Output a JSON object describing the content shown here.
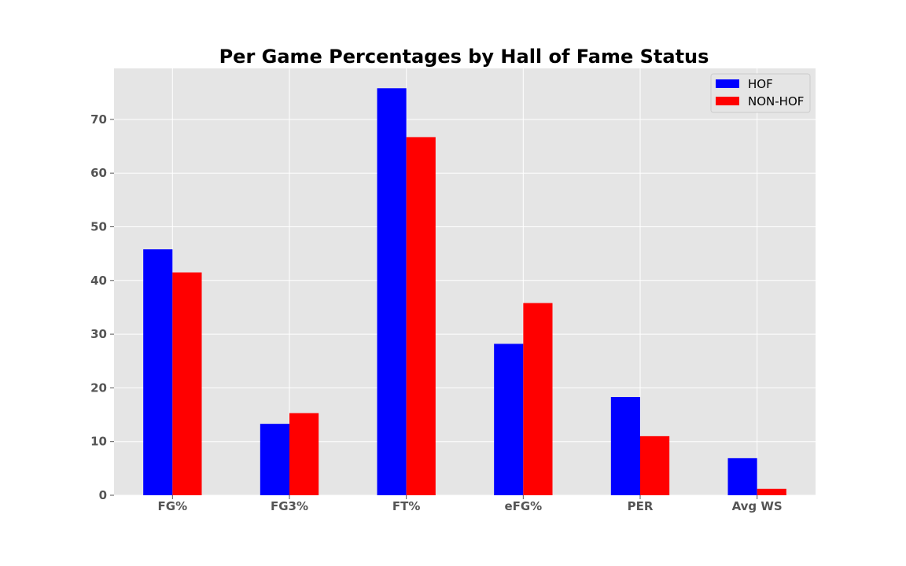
{
  "colors": {
    "plot_background": "#e5e5e5",
    "grid": "#ffffff",
    "hof": "#0000ff",
    "non_hof": "#ff0000",
    "tick_text": "#555555"
  },
  "chart_data": {
    "type": "bar",
    "title": "Per Game Percentages by Hall of Fame Status",
    "xlabel": "",
    "ylabel": "",
    "categories": [
      "FG%",
      "FG3%",
      "FT%",
      "eFG%",
      "PER",
      "Avg WS"
    ],
    "series": [
      {
        "name": "HOF",
        "color": "#0000ff",
        "values": [
          45.8,
          13.3,
          75.8,
          28.2,
          18.3,
          6.9
        ]
      },
      {
        "name": "NON-HOF",
        "color": "#ff0000",
        "values": [
          41.5,
          15.3,
          66.7,
          35.8,
          11.0,
          1.2
        ]
      }
    ],
    "ylim": [
      0,
      79.5
    ],
    "yticks": [
      0,
      10,
      20,
      30,
      40,
      50,
      60,
      70
    ],
    "grid": true,
    "legend_position": "top-right"
  }
}
